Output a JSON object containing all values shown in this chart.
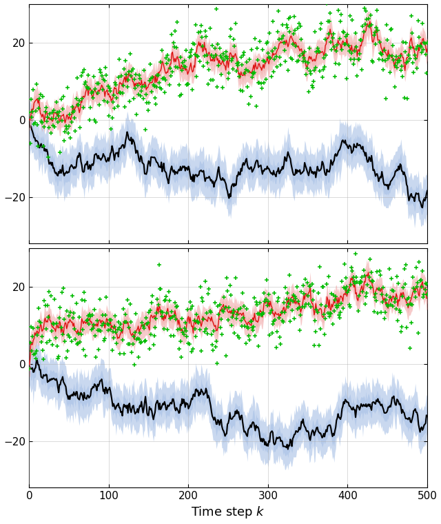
{
  "n_steps": 500,
  "x_label": "Time step $k$",
  "x_ticks": [
    0,
    100,
    200,
    300,
    400,
    500
  ],
  "y_ticks": [
    -20,
    0,
    20
  ],
  "red_fill_color": "#f0a0a0",
  "red_line_color": "#dd1111",
  "blue_fill_color": "#88aadd",
  "black_line_color": "#000000",
  "green_marker_color": "#00bb00",
  "red_fill_alpha": 0.55,
  "blue_fill_alpha": 0.45,
  "figsize": [
    6.4,
    7.6
  ],
  "dpi": 100,
  "grid_color": "#aaaaaa",
  "grid_alpha": 0.5,
  "ylim": [
    -32,
    30
  ],
  "xlim": [
    0,
    500
  ]
}
